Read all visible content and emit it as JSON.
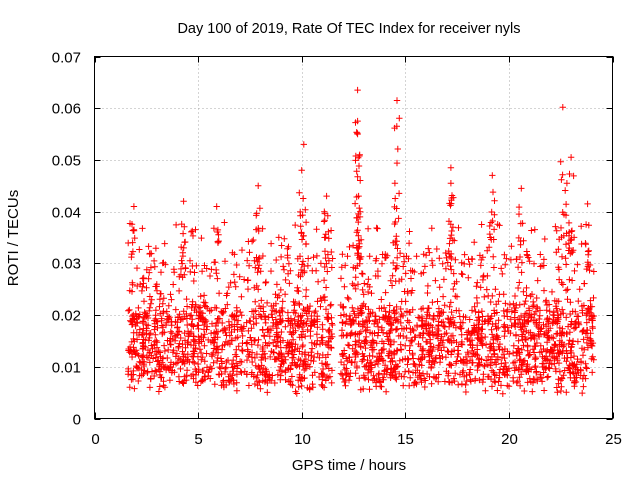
{
  "chart_data": {
    "type": "scatter",
    "title": "Day 100 of 2019, Rate Of TEC Index for receiver nyls",
    "xlabel": "GPS time / hours",
    "ylabel": "ROTI / TECUs",
    "xlim": [
      0,
      25
    ],
    "ylim": [
      0,
      0.07
    ],
    "xticks": [
      0,
      5,
      10,
      15,
      20,
      25
    ],
    "yticks": [
      0,
      0.01,
      0.02,
      0.03,
      0.04,
      0.05,
      0.06,
      0.07
    ],
    "xtick_labels": [
      "0",
      "5",
      "10",
      "15",
      "20",
      "25"
    ],
    "ytick_labels": [
      "0",
      "0.01",
      "0.02",
      "0.03",
      "0.04",
      "0.05",
      "0.06",
      "0.07"
    ],
    "grid": true,
    "marker": "+",
    "color": "#ff0000",
    "time_range": [
      1.6,
      24.1
    ],
    "gap_range": [
      11.5,
      11.85
    ],
    "series": [
      {
        "name": "ROTI",
        "notable_points": [
          {
            "x": 1.9,
            "y": 0.041
          },
          {
            "x": 4.3,
            "y": 0.042
          },
          {
            "x": 5.9,
            "y": 0.041
          },
          {
            "x": 7.9,
            "y": 0.045
          },
          {
            "x": 10.1,
            "y": 0.053
          },
          {
            "x": 10.0,
            "y": 0.048
          },
          {
            "x": 11.2,
            "y": 0.043
          },
          {
            "x": 12.7,
            "y": 0.0635
          },
          {
            "x": 12.7,
            "y": 0.0575
          },
          {
            "x": 12.7,
            "y": 0.055
          },
          {
            "x": 12.8,
            "y": 0.051
          },
          {
            "x": 14.6,
            "y": 0.0615
          },
          {
            "x": 14.5,
            "y": 0.0455
          },
          {
            "x": 17.2,
            "y": 0.0485
          },
          {
            "x": 17.2,
            "y": 0.0455
          },
          {
            "x": 19.2,
            "y": 0.047
          },
          {
            "x": 20.6,
            "y": 0.0445
          },
          {
            "x": 22.6,
            "y": 0.0602
          },
          {
            "x": 23.0,
            "y": 0.0505
          },
          {
            "x": 22.8,
            "y": 0.0455
          },
          {
            "x": 23.8,
            "y": 0.0415
          }
        ],
        "typical_range": [
          0.005,
          0.03
        ],
        "median": 0.015
      }
    ]
  }
}
